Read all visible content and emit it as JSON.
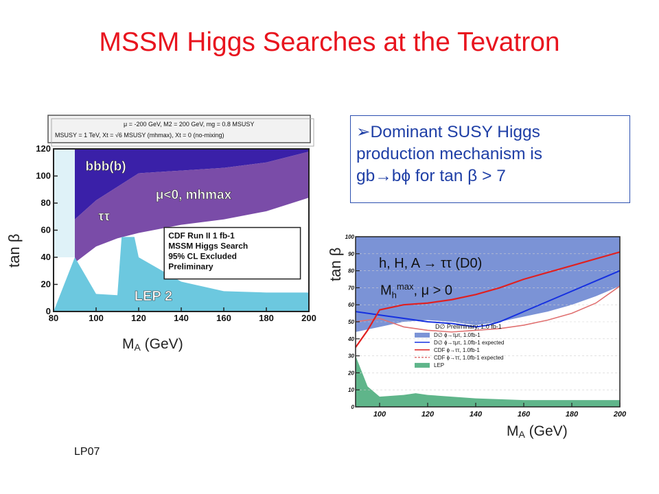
{
  "slide": {
    "title": "MSSM Higgs Searches at the Tevatron",
    "footer": "LP07"
  },
  "callout": {
    "bullet": "➢",
    "line1": "Dominant SUSY Higgs",
    "line2": "production mechanism is",
    "line3_a": "gb",
    "line3_arrow": "→",
    "line3_b": "bϕ for tan β > 7"
  },
  "left_chart_labels": {
    "y_axis": "tan β",
    "x_axis_main": "M",
    "x_axis_sub": "A",
    "x_axis_unit": " (GeV)"
  },
  "right_chart_labels": {
    "y_axis": "tan β",
    "x_axis_main": "M",
    "x_axis_sub": "A",
    "x_axis_unit": " (GeV)",
    "annotation1": "h, H, A  → ττ (D0)",
    "annotation2_main": "M",
    "annotation2_sub": "h",
    "annotation2_sup": "max",
    "annotation2_rest": ", μ > 0"
  },
  "colors": {
    "title": "#e8141e",
    "callout_text": "#1f3fa6",
    "bbb": "#3a20a8",
    "tautau_purple": "#7a4ca8",
    "lep_cyan": "#6cc8df",
    "d0_blue_fill": "#7b93d6",
    "lep_green": "#5fb58a",
    "cdf_red": "#e02020",
    "d0_blue_line": "#1530e0"
  },
  "chart_data": [
    {
      "type": "area",
      "name_note": "CDF MSSM Higgs exclusion",
      "xlim": [
        80,
        200
      ],
      "ylim": [
        0,
        120
      ],
      "x_ticks": [
        80,
        100,
        120,
        140,
        160,
        180,
        200
      ],
      "y_ticks": [
        0,
        20,
        40,
        60,
        80,
        100,
        120
      ],
      "header_line1": "μ = -200 GeV,  M2 = 200 GeV,  mg = 0.8 MSUSY",
      "header_line2": "MSUSY = 1 TeV,    Xt = √6 MSUSY (mhmax),      Xt = 0  (no-mixing)",
      "region_labels": [
        "bbb(b)",
        "μ<0, mhmax",
        "ττ",
        "LEP 2"
      ],
      "legend_lines": [
        "CDF Run II   1 fb-1",
        "MSSM Higgs Search",
        "95% CL Excluded",
        "Preliminary"
      ],
      "bbb_lower_edge": {
        "x": [
          90,
          100,
          120,
          140,
          160,
          180,
          200
        ],
        "y": [
          68,
          82,
          102,
          104,
          106,
          110,
          118
        ]
      },
      "tautau_lower_edge": {
        "x": [
          90,
          100,
          110,
          120,
          140,
          160,
          180,
          200
        ],
        "y": [
          36,
          48,
          54,
          58,
          64,
          68,
          74,
          84
        ]
      },
      "lep_upper_edge": {
        "x": [
          80,
          90,
          100,
          110,
          112,
          118,
          120,
          140,
          160,
          180,
          200
        ],
        "y": [
          0,
          40,
          13,
          12,
          55,
          55,
          40,
          22,
          15,
          14,
          14
        ]
      }
    },
    {
      "type": "line",
      "name_note": "D0 and CDF phi -> tautau",
      "xlim": [
        90,
        200
      ],
      "ylim": [
        0,
        100
      ],
      "x_ticks": [
        100,
        120,
        140,
        160,
        180,
        200
      ],
      "y_ticks": [
        0,
        10,
        20,
        30,
        40,
        50,
        60,
        70,
        80,
        90,
        100
      ],
      "legend_title": "D∅ Preliminary, 1.0 fb-1",
      "legend_entries": [
        "D∅  ϕ→τμτ, 1.0fb-1",
        "D∅  ϕ→τμτ, 1.0fb-1  expected",
        "CDF  ϕ→ττ, 1.0fb-1",
        "CDF  ϕ→ττ, 1.0fb-1  expected",
        "LEP"
      ],
      "series": [
        {
          "name": "D∅ ϕ→τμτ, 1.0fb-1",
          "kind": "fill_above",
          "x": [
            90,
            100,
            110,
            120,
            130,
            140,
            150,
            160,
            170,
            180,
            190,
            200
          ],
          "y": [
            44,
            47,
            50,
            51,
            50,
            48,
            50,
            53,
            56,
            60,
            65,
            71
          ]
        },
        {
          "name": "D∅ ϕ→τμτ, 1.0fb-1 expected",
          "x": [
            90,
            100,
            110,
            120,
            130,
            140,
            145,
            150,
            160,
            170,
            180,
            190,
            200
          ],
          "y": [
            56,
            54,
            52,
            50,
            49,
            47,
            48,
            50,
            56,
            62,
            68,
            74,
            80
          ]
        },
        {
          "name": "CDF ϕ→ττ, 1.0fb-1",
          "x": [
            90,
            95,
            100,
            110,
            120,
            130,
            140,
            150,
            160,
            170,
            180,
            190,
            200
          ],
          "y": [
            35,
            45,
            57,
            60,
            61,
            63,
            66,
            70,
            75,
            79,
            83,
            87,
            91
          ]
        },
        {
          "name": "CDF ϕ→ττ, 1.0fb-1 expected",
          "x": [
            90,
            100,
            110,
            120,
            130,
            140,
            150,
            160,
            170,
            180,
            190,
            200
          ],
          "y": [
            50,
            52,
            47,
            45,
            44,
            45,
            46,
            48,
            51,
            55,
            61,
            71
          ]
        },
        {
          "name": "LEP",
          "kind": "fill_below",
          "x": [
            90,
            95,
            100,
            110,
            115,
            120,
            140,
            160,
            180,
            200
          ],
          "y": [
            30,
            12,
            6,
            7,
            8,
            7,
            5,
            4,
            4,
            4
          ]
        }
      ]
    }
  ]
}
